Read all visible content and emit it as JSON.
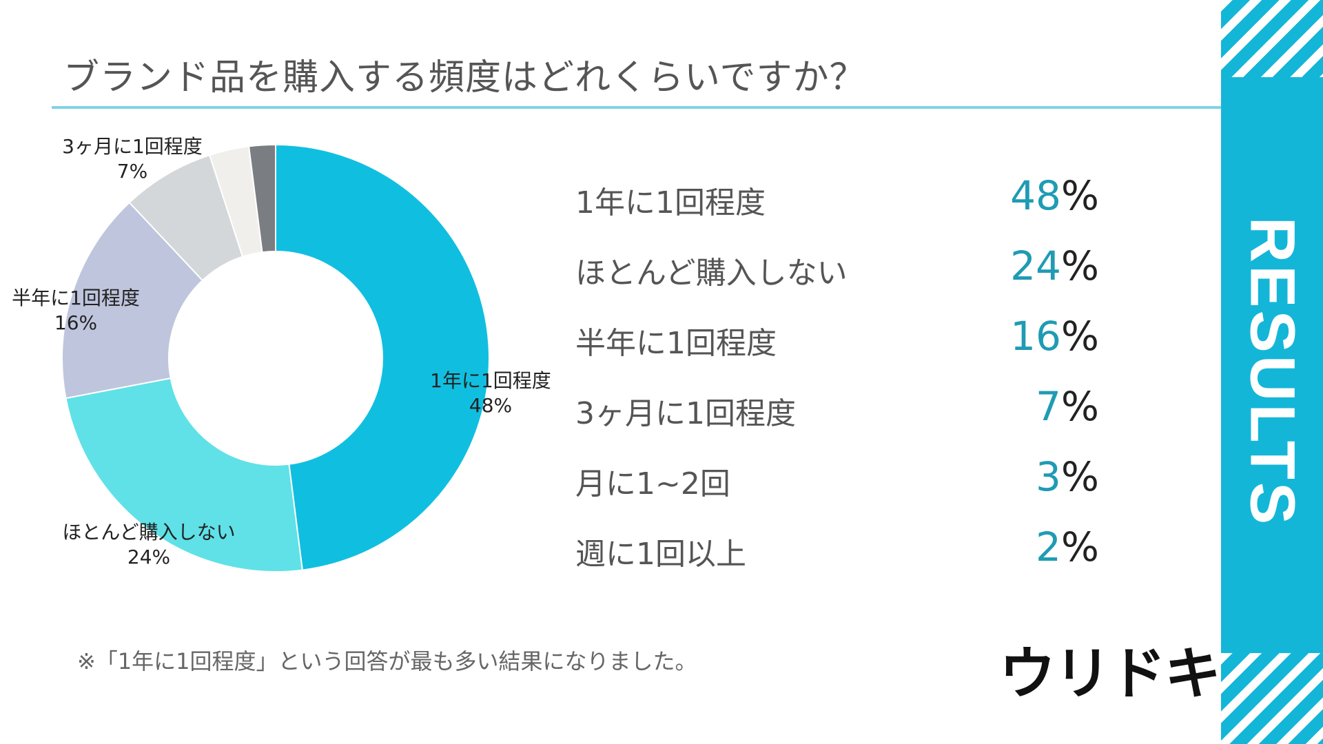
{
  "title": "ブランド品を購入する頻度はどれくらいですか？",
  "side_label": "RESULTS",
  "footnote": "※「1年に1回程度」という回答が最も多い結果になりました。",
  "logo": "ウリドキ",
  "chart_data": {
    "type": "pie",
    "variant": "donut",
    "title": "ブランド品を購入する頻度はどれくらいですか？",
    "categories": [
      "1年に1回程度",
      "ほとんど購入しない",
      "半年に1回程度",
      "3ヶ月に1回程度",
      "月に1~2回",
      "週に1回以上"
    ],
    "values": [
      48,
      24,
      16,
      7,
      3,
      2
    ],
    "unit": "%",
    "colors": [
      "#10bfe0",
      "#5fe1e7",
      "#bfc5dc",
      "#d4d7da",
      "#f0efec",
      "#7a7d81"
    ],
    "slice_labels": [
      {
        "category": "1年に1回程度",
        "value_text": "48%"
      },
      {
        "category": "ほとんど購入しない",
        "value_text": "24%"
      },
      {
        "category": "半年に1回程度",
        "value_text": "16%"
      },
      {
        "category": "3ヶ月に1回程度",
        "value_text": "7%"
      }
    ]
  },
  "legend": [
    {
      "label": "1年に1回程度",
      "value": "48",
      "unit": "%"
    },
    {
      "label": "ほとんど購入しない",
      "value": "24",
      "unit": "%"
    },
    {
      "label": "半年に1回程度",
      "value": "16",
      "unit": "%"
    },
    {
      "label": "3ヶ月に1回程度",
      "value": "7",
      "unit": "%"
    },
    {
      "label": "月に1~2回",
      "value": "3",
      "unit": "%"
    },
    {
      "label": "週に1回以上",
      "value": "2",
      "unit": "%"
    }
  ]
}
